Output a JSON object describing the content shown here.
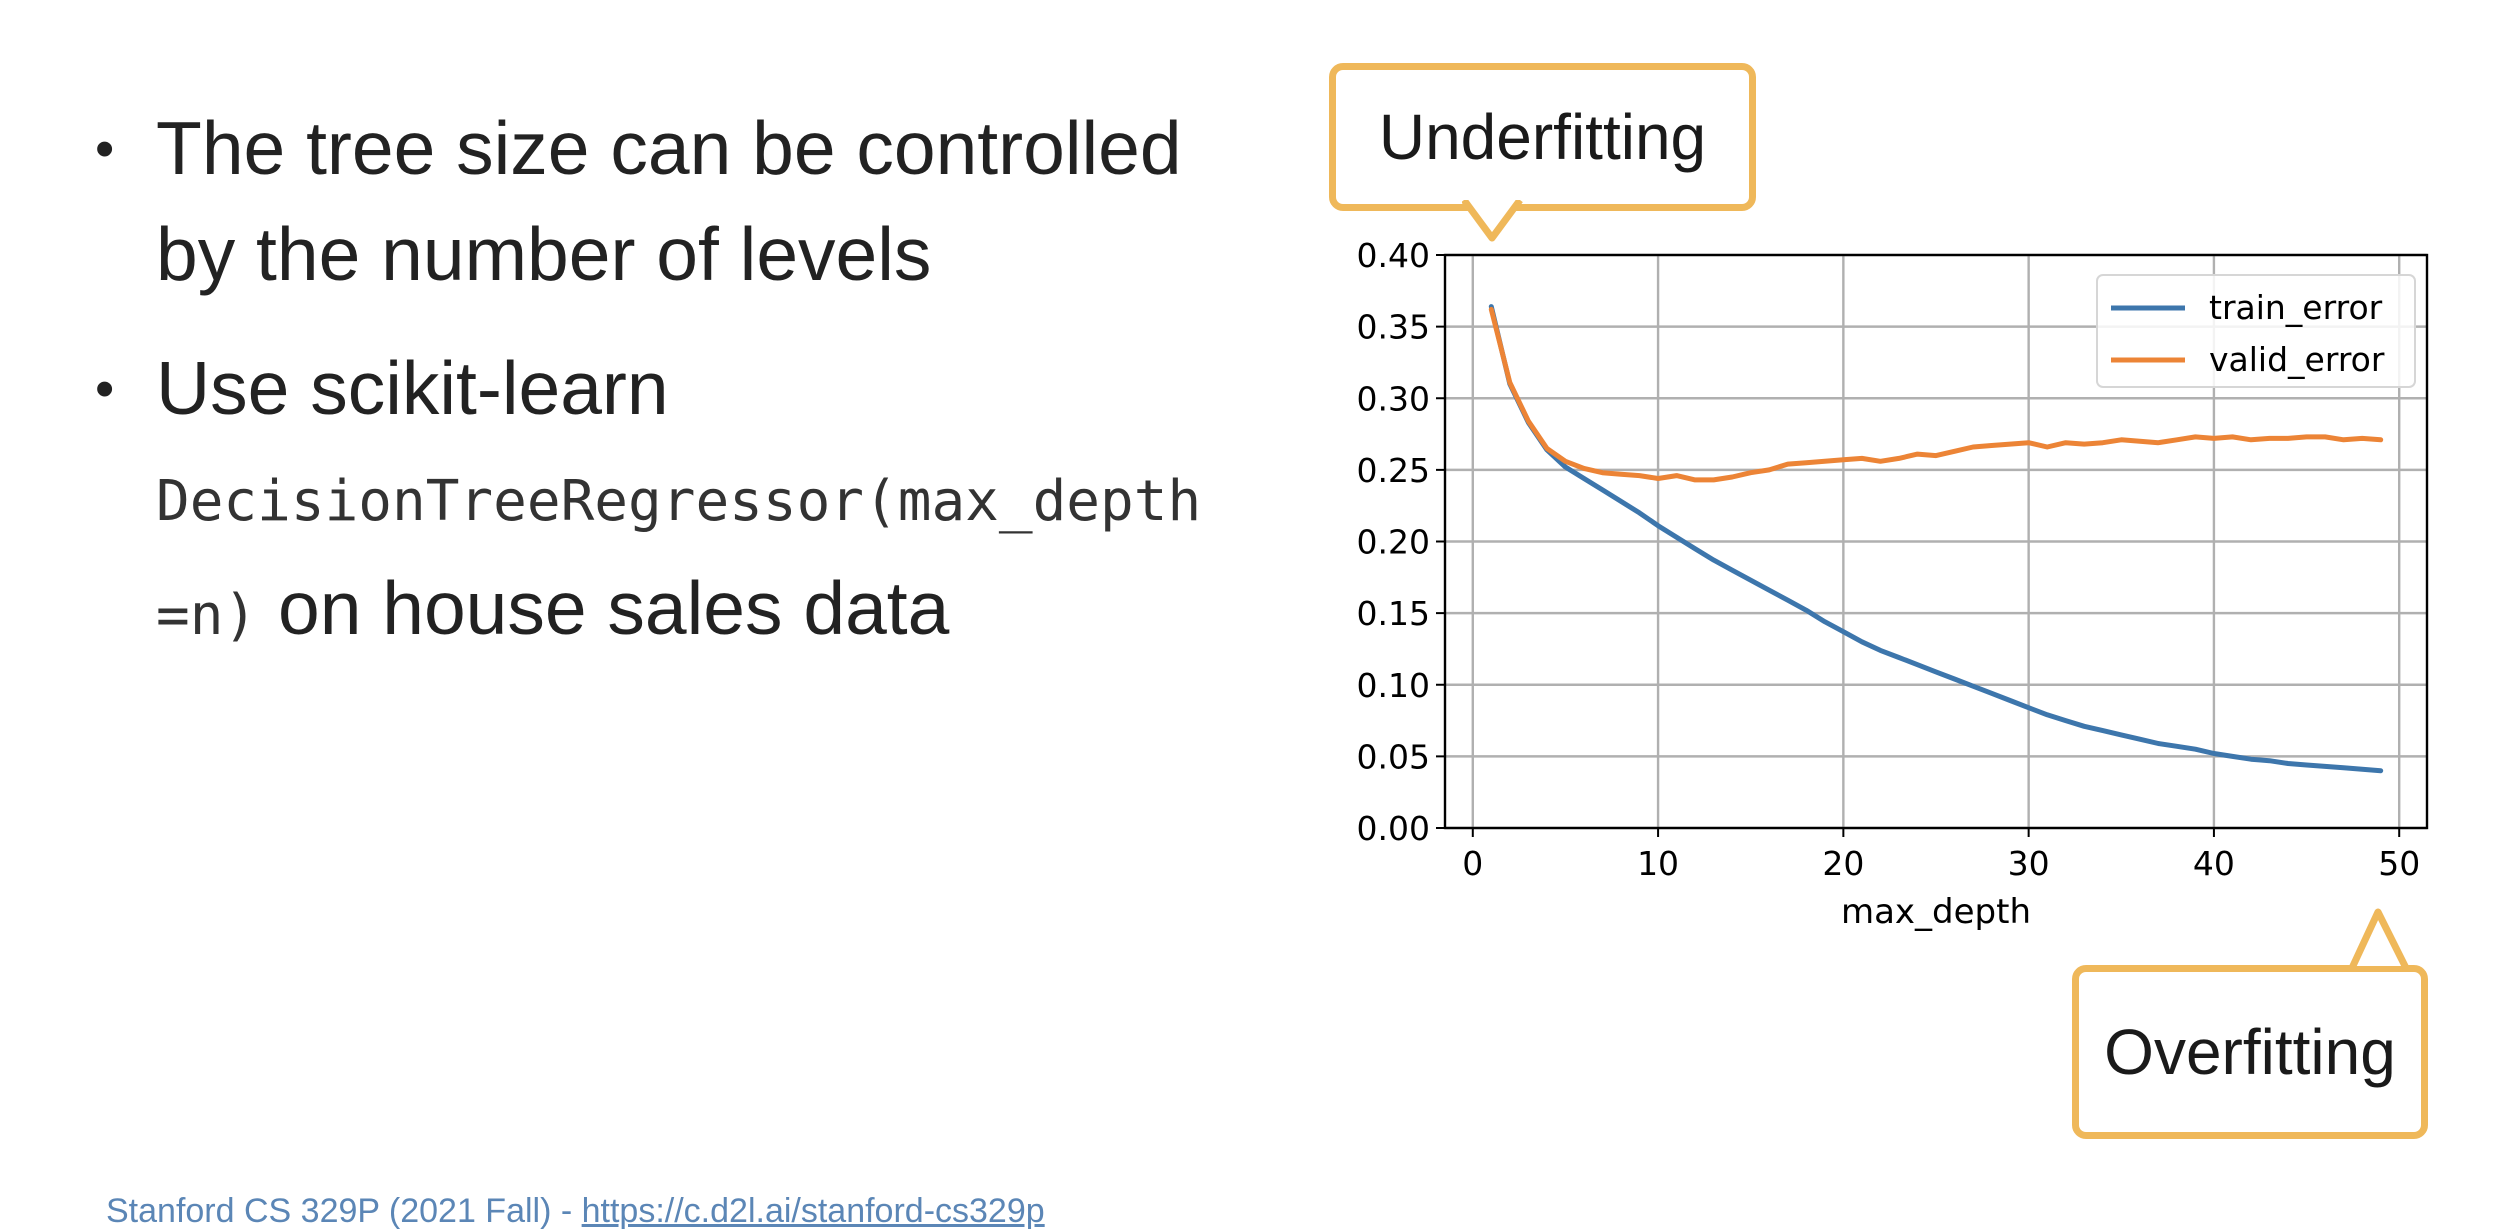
{
  "bullets": [
    {
      "lines": [
        "The tree size can be controlled",
        "by the number of levels"
      ]
    },
    {
      "line1": "Use scikit-learn",
      "code_a": "DecisionTreeRegressor(max_depth",
      "code_b": "=n)",
      "text_after": " on house sales data"
    }
  ],
  "callouts": {
    "underfitting": "Underfitting",
    "overfitting": "Overfitting"
  },
  "footer": {
    "text": "Stanford CS 329P (2021 Fall) - ",
    "link": "https://c.d2l.ai/stanford-cs329p"
  },
  "colors": {
    "train": "#3d76ac",
    "valid": "#ec8436",
    "callout": "#efb85a",
    "footer": "#5b86b6"
  },
  "chart_data": {
    "type": "line",
    "xlabel": "max_depth",
    "ylabel": "",
    "xlim": [
      -1.5,
      51.5
    ],
    "ylim": [
      0,
      0.4
    ],
    "xticks": [
      0,
      10,
      20,
      30,
      40,
      50
    ],
    "yticks": [
      0.0,
      0.05,
      0.1,
      0.15,
      0.2,
      0.25,
      0.3,
      0.35,
      0.4
    ],
    "ytick_labels": [
      "0.00",
      "0.05",
      "0.10",
      "0.15",
      "0.20",
      "0.25",
      "0.30",
      "0.35",
      "0.40"
    ],
    "grid": true,
    "legend": "top-right",
    "x": [
      1,
      2,
      3,
      4,
      5,
      6,
      7,
      8,
      9,
      10,
      11,
      12,
      13,
      14,
      15,
      16,
      17,
      18,
      19,
      20,
      21,
      22,
      23,
      24,
      25,
      26,
      27,
      28,
      29,
      30,
      31,
      32,
      33,
      34,
      35,
      36,
      37,
      38,
      39,
      40,
      41,
      42,
      43,
      44,
      45,
      46,
      47,
      48,
      49
    ],
    "series": [
      {
        "name": "train_error",
        "values": [
          0.364,
          0.31,
          0.283,
          0.264,
          0.252,
          0.244,
          0.236,
          0.228,
          0.22,
          0.211,
          0.203,
          0.195,
          0.187,
          0.18,
          0.173,
          0.166,
          0.159,
          0.152,
          0.144,
          0.137,
          0.13,
          0.124,
          0.119,
          0.114,
          0.109,
          0.104,
          0.099,
          0.094,
          0.089,
          0.084,
          0.079,
          0.075,
          0.071,
          0.068,
          0.065,
          0.062,
          0.059,
          0.057,
          0.055,
          0.052,
          0.05,
          0.048,
          0.047,
          0.045,
          0.044,
          0.043,
          0.042,
          0.041,
          0.04
        ]
      },
      {
        "name": "valid_error",
        "values": [
          0.362,
          0.311,
          0.284,
          0.265,
          0.256,
          0.251,
          0.248,
          0.247,
          0.246,
          0.244,
          0.246,
          0.243,
          0.243,
          0.245,
          0.248,
          0.25,
          0.254,
          0.255,
          0.256,
          0.257,
          0.258,
          0.256,
          0.258,
          0.261,
          0.26,
          0.263,
          0.266,
          0.267,
          0.268,
          0.269,
          0.266,
          0.269,
          0.268,
          0.269,
          0.271,
          0.27,
          0.269,
          0.271,
          0.273,
          0.272,
          0.273,
          0.271,
          0.272,
          0.272,
          0.273,
          0.273,
          0.271,
          0.272,
          0.271
        ]
      }
    ]
  }
}
